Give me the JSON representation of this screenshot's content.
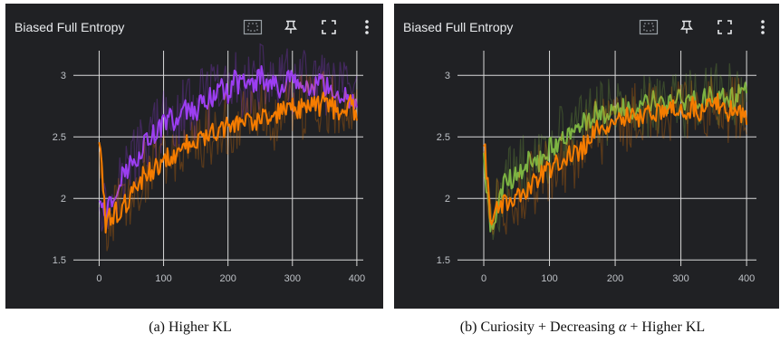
{
  "panels": [
    {
      "title": "Biased Full Entropy",
      "toolbar": [
        "fit-domain-icon",
        "pin-icon",
        "fullscreen-icon",
        "more-vertical-icon"
      ],
      "caption_label": "(a)",
      "caption_text": "Higher KL"
    },
    {
      "title": "Biased Full Entropy",
      "toolbar": [
        "fit-domain-icon",
        "pin-icon",
        "fullscreen-icon",
        "more-vertical-icon"
      ],
      "caption_label": "(b)",
      "caption_prefix": "Curiosity + Decreasing ",
      "caption_symbol": "α",
      "caption_suffix": " + Higher KL"
    }
  ],
  "colors": {
    "panel_bg": "#202124",
    "grid": "#d9d9d9",
    "orange": "#f57c00",
    "purple": "#9c3ef2",
    "green": "#7cb342"
  },
  "chart_data": [
    {
      "type": "line",
      "title": "Biased Full Entropy",
      "xlabel": "",
      "ylabel": "",
      "xlim": [
        -40,
        410
      ],
      "ylim": [
        1.45,
        3.2
      ],
      "xticks": [
        0,
        100,
        200,
        300,
        400
      ],
      "yticks": [
        1.5,
        2,
        2.5,
        3
      ],
      "xtick_labels": [
        "0",
        "100",
        "200",
        "300",
        "400"
      ],
      "ytick_labels": [
        "1.5",
        "2",
        "2.5",
        "3"
      ],
      "grid": true,
      "series": [
        {
          "color": "#9c3ef2",
          "x": [
            0,
            10,
            20,
            30,
            40,
            50,
            60,
            70,
            80,
            90,
            100,
            110,
            120,
            130,
            140,
            150,
            160,
            170,
            180,
            190,
            200,
            210,
            220,
            230,
            240,
            250,
            260,
            270,
            280,
            290,
            300,
            310,
            320,
            330,
            340,
            350,
            360,
            370,
            380,
            390,
            400
          ],
          "y": [
            2.05,
            1.9,
            2.0,
            2.15,
            2.2,
            2.3,
            2.35,
            2.45,
            2.5,
            2.55,
            2.6,
            2.65,
            2.6,
            2.7,
            2.75,
            2.7,
            2.8,
            2.8,
            2.85,
            2.9,
            2.85,
            2.95,
            2.9,
            2.95,
            2.9,
            3.0,
            2.95,
            2.95,
            2.9,
            2.95,
            2.95,
            2.9,
            2.95,
            2.9,
            2.95,
            2.9,
            2.9,
            2.85,
            2.85,
            2.8,
            2.75
          ]
        },
        {
          "color": "#f57c00",
          "x": [
            0,
            10,
            20,
            30,
            40,
            50,
            60,
            70,
            80,
            90,
            100,
            110,
            120,
            130,
            140,
            150,
            160,
            170,
            180,
            190,
            200,
            210,
            220,
            230,
            240,
            250,
            260,
            270,
            280,
            290,
            300,
            310,
            320,
            330,
            340,
            350,
            360,
            370,
            380,
            390,
            400
          ],
          "y": [
            2.5,
            1.8,
            1.85,
            1.9,
            1.95,
            2.05,
            2.1,
            2.2,
            2.2,
            2.25,
            2.3,
            2.35,
            2.35,
            2.4,
            2.45,
            2.45,
            2.5,
            2.55,
            2.55,
            2.55,
            2.6,
            2.6,
            2.65,
            2.65,
            2.6,
            2.65,
            2.7,
            2.65,
            2.7,
            2.7,
            2.75,
            2.7,
            2.75,
            2.8,
            2.75,
            2.8,
            2.75,
            2.7,
            2.75,
            2.75,
            2.7
          ]
        }
      ]
    },
    {
      "type": "line",
      "title": "Biased Full Entropy",
      "xlabel": "",
      "ylabel": "",
      "xlim": [
        -40,
        415
      ],
      "ylim": [
        1.45,
        3.2
      ],
      "xticks": [
        0,
        100,
        200,
        300,
        400
      ],
      "yticks": [
        1.5,
        2,
        2.5,
        3
      ],
      "xtick_labels": [
        "0",
        "100",
        "200",
        "300",
        "400"
      ],
      "ytick_labels": [
        "1.5",
        "2",
        "2.5",
        "3"
      ],
      "grid": true,
      "series": [
        {
          "color": "#7cb342",
          "x": [
            0,
            10,
            20,
            30,
            40,
            50,
            60,
            70,
            80,
            90,
            100,
            110,
            120,
            130,
            140,
            150,
            160,
            170,
            180,
            190,
            200,
            210,
            220,
            230,
            240,
            250,
            260,
            270,
            280,
            290,
            300,
            310,
            320,
            330,
            340,
            350,
            360,
            370,
            380,
            390,
            400
          ],
          "y": [
            2.3,
            1.75,
            1.9,
            2.1,
            2.15,
            2.2,
            2.25,
            2.3,
            2.25,
            2.35,
            2.4,
            2.45,
            2.5,
            2.5,
            2.55,
            2.65,
            2.6,
            2.7,
            2.7,
            2.7,
            2.75,
            2.75,
            2.7,
            2.75,
            2.8,
            2.75,
            2.8,
            2.8,
            2.75,
            2.8,
            2.8,
            2.75,
            2.85,
            2.8,
            2.8,
            2.85,
            2.8,
            2.85,
            2.8,
            2.85,
            2.85
          ]
        },
        {
          "color": "#f57c00",
          "x": [
            0,
            10,
            20,
            30,
            40,
            50,
            60,
            70,
            80,
            90,
            100,
            110,
            120,
            130,
            140,
            150,
            160,
            170,
            180,
            190,
            200,
            210,
            220,
            230,
            240,
            250,
            260,
            270,
            280,
            290,
            300,
            310,
            320,
            330,
            340,
            350,
            360,
            370,
            380,
            390,
            400
          ],
          "y": [
            2.5,
            1.85,
            1.9,
            1.95,
            2.0,
            2.05,
            2.05,
            2.1,
            2.15,
            2.2,
            2.25,
            2.3,
            2.3,
            2.35,
            2.35,
            2.4,
            2.5,
            2.55,
            2.55,
            2.6,
            2.6,
            2.65,
            2.65,
            2.7,
            2.65,
            2.7,
            2.7,
            2.65,
            2.75,
            2.7,
            2.75,
            2.7,
            2.75,
            2.7,
            2.75,
            2.8,
            2.75,
            2.7,
            2.75,
            2.7,
            2.65
          ]
        }
      ]
    }
  ]
}
